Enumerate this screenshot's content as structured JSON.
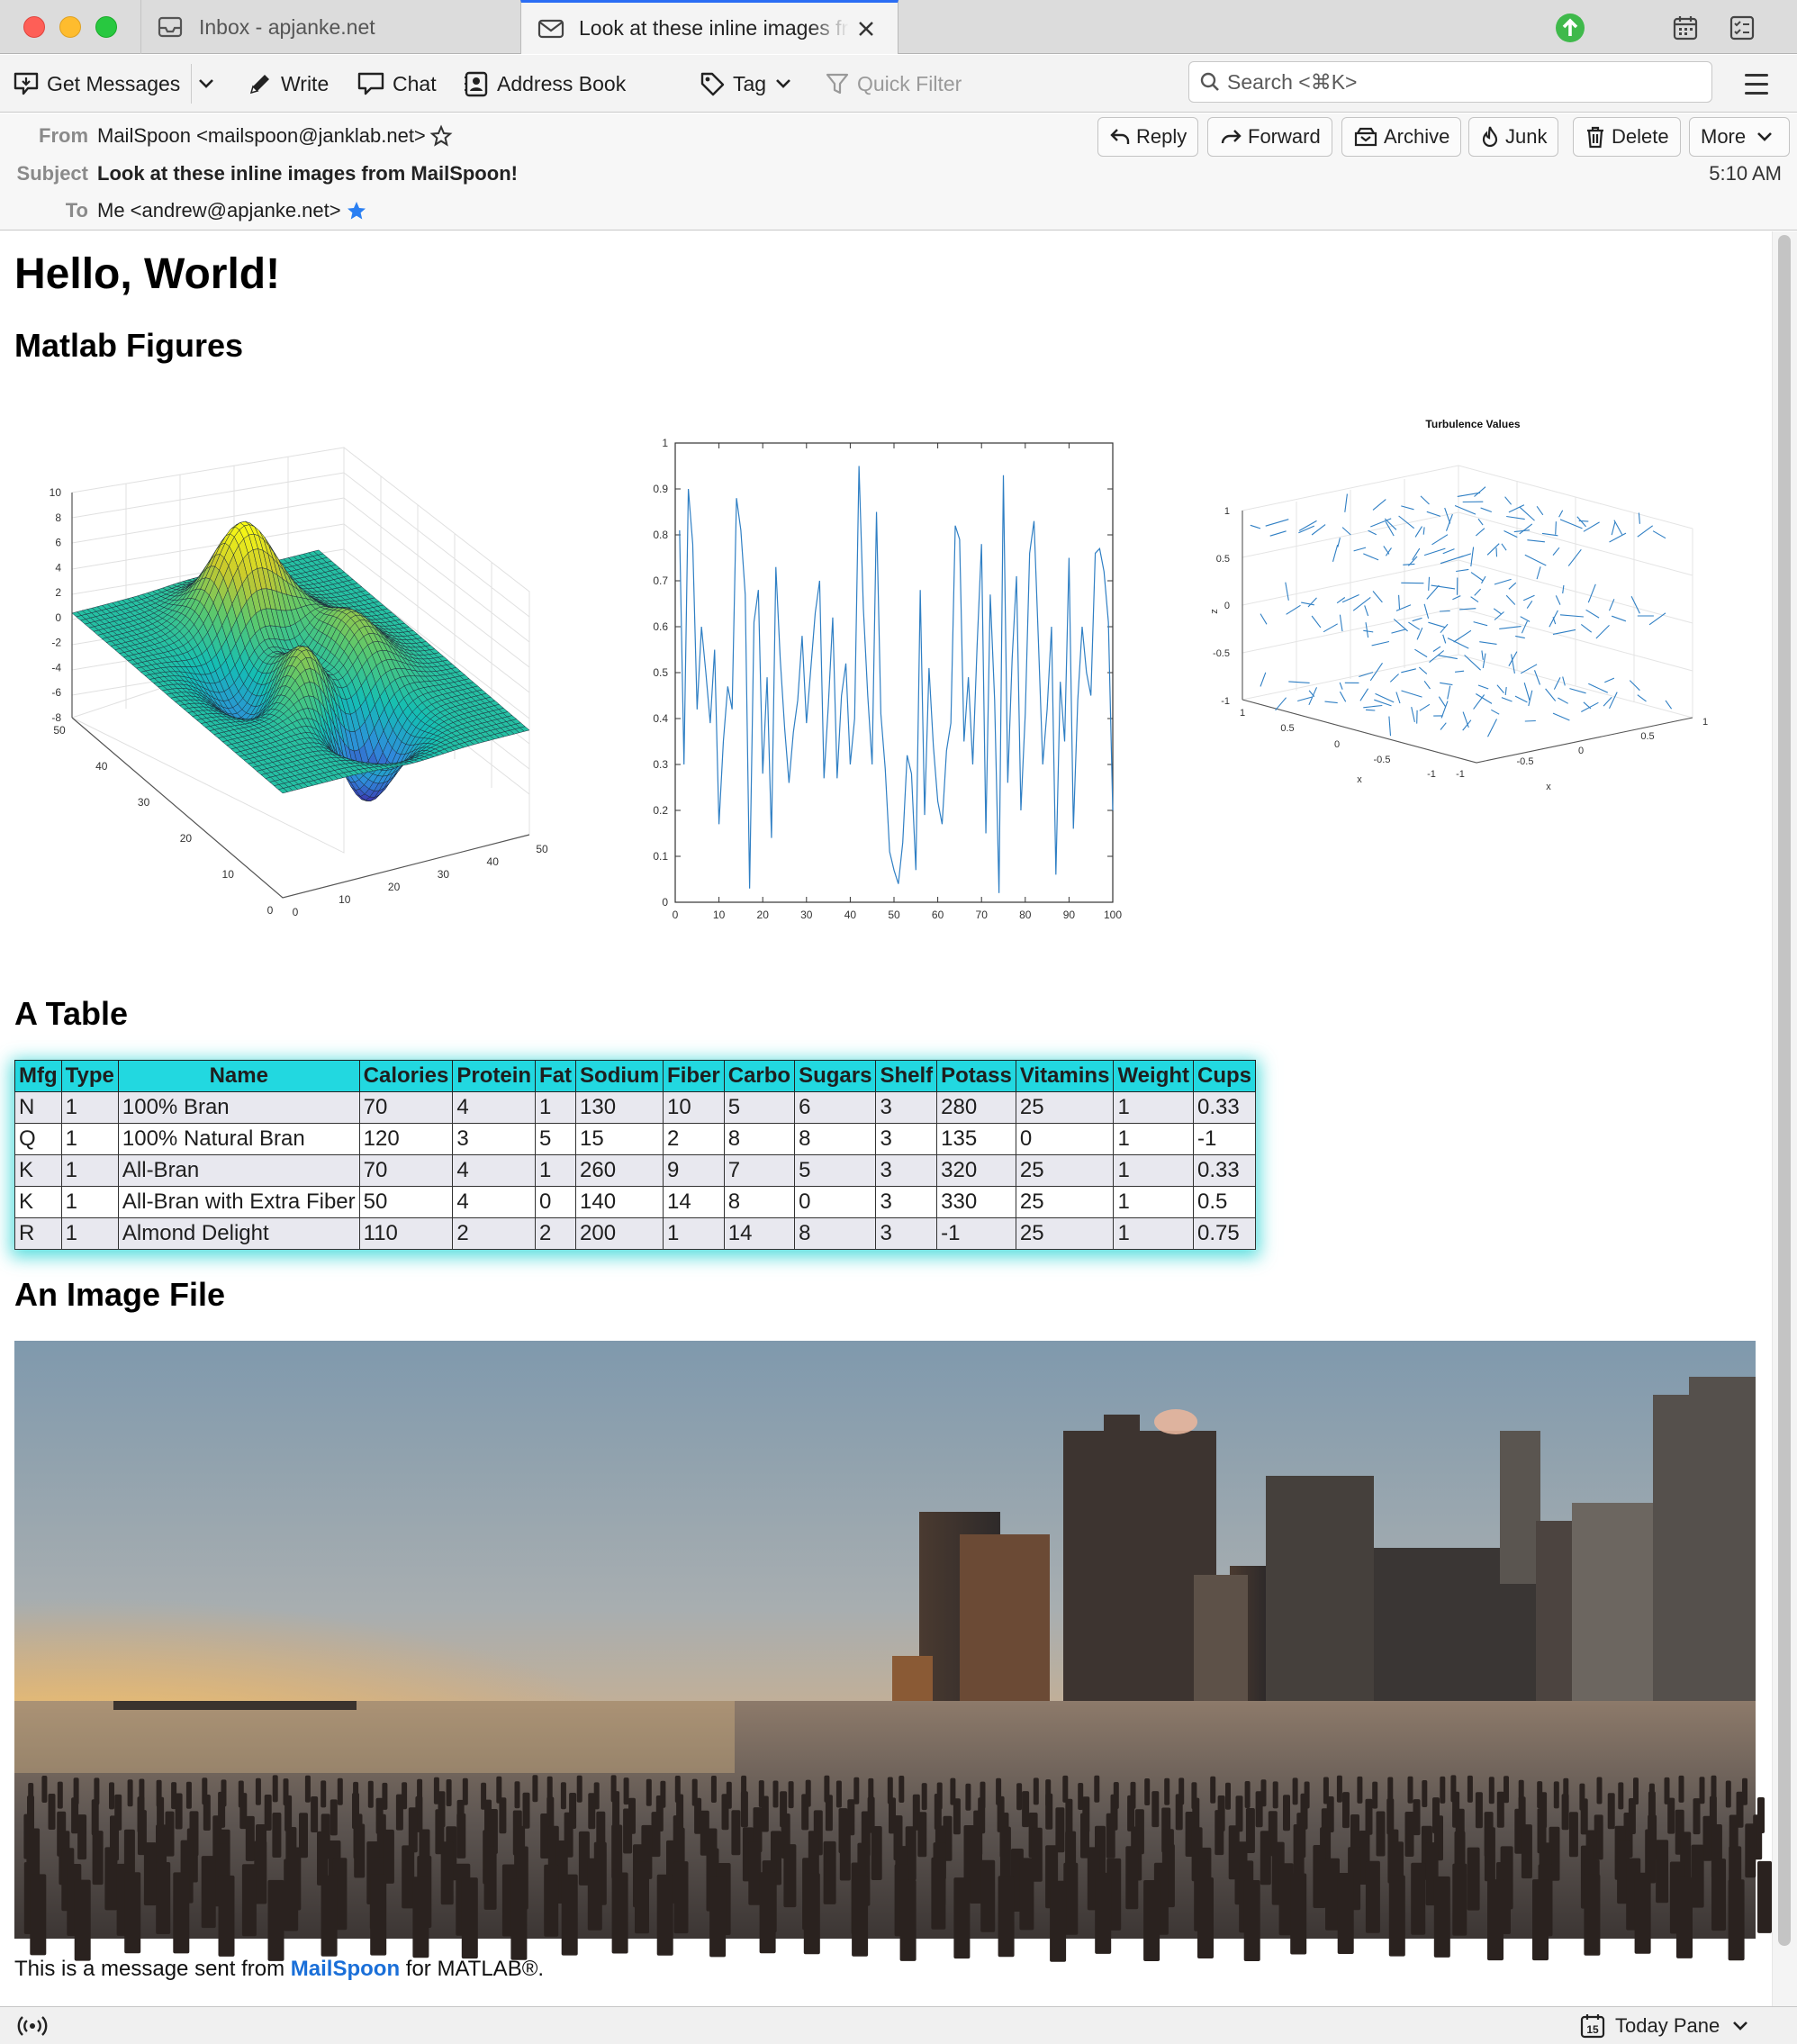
{
  "window": {
    "tabs": [
      {
        "label": "Inbox - apjanke.net",
        "icon": "inbox-icon"
      },
      {
        "label": "Look at these inline images from MailSpoon!",
        "icon": "envelope-icon"
      }
    ]
  },
  "toolbar": {
    "get_messages": "Get Messages",
    "write": "Write",
    "chat": "Chat",
    "address_book": "Address Book",
    "tag": "Tag",
    "quick_filter": "Quick Filter",
    "search_placeholder": "Search <⌘K>"
  },
  "header": {
    "from_label": "From",
    "from_value": "MailSpoon <mailspoon@janklab.net>",
    "subject_label": "Subject",
    "subject_value": "Look at these inline images from MailSpoon!",
    "to_label": "To",
    "to_value": "Me <andrew@apjanke.net>",
    "time": "5:10 AM",
    "buttons": {
      "reply": "Reply",
      "forward": "Forward",
      "archive": "Archive",
      "junk": "Junk",
      "delete": "Delete",
      "more": "More"
    }
  },
  "body": {
    "greeting": "Hello, World!",
    "figures_heading": "Matlab Figures",
    "table_heading": "A Table",
    "image_heading": "An Image File",
    "footer_prefix": "This is a message sent from ",
    "footer_link": "MailSpoon",
    "footer_suffix": " for MATLAB®."
  },
  "table": {
    "headers": [
      "Mfg",
      "Type",
      "Name",
      "Calories",
      "Protein",
      "Fat",
      "Sodium",
      "Fiber",
      "Carbo",
      "Sugars",
      "Shelf",
      "Potass",
      "Vitamins",
      "Weight",
      "Cups"
    ],
    "rows": [
      [
        "N",
        "1",
        "100% Bran",
        "70",
        "4",
        "1",
        "130",
        "10",
        "5",
        "6",
        "3",
        "280",
        "25",
        "1",
        "0.33"
      ],
      [
        "Q",
        "1",
        "100% Natural Bran",
        "120",
        "3",
        "5",
        "15",
        "2",
        "8",
        "8",
        "3",
        "135",
        "0",
        "1",
        "-1"
      ],
      [
        "K",
        "1",
        "All-Bran",
        "70",
        "4",
        "1",
        "260",
        "9",
        "7",
        "5",
        "3",
        "320",
        "25",
        "1",
        "0.33"
      ],
      [
        "K",
        "1",
        "All-Bran with Extra Fiber",
        "50",
        "4",
        "0",
        "140",
        "14",
        "8",
        "0",
        "3",
        "330",
        "25",
        "1",
        "0.5"
      ],
      [
        "R",
        "1",
        "Almond Delight",
        "110",
        "2",
        "2",
        "200",
        "1",
        "14",
        "8",
        "3",
        "-1",
        "25",
        "1",
        "0.75"
      ]
    ]
  },
  "chart_data": [
    {
      "type": "surface",
      "x_ticks": [
        "0",
        "10",
        "20",
        "30",
        "40",
        "50"
      ],
      "y_ticks": [
        "0",
        "10",
        "20",
        "30",
        "40",
        "50"
      ],
      "z_ticks": [
        "-8",
        "-6",
        "-4",
        "-2",
        "0",
        "2",
        "4",
        "6",
        "8",
        "10"
      ],
      "xlim": [
        0,
        50
      ],
      "ylim": [
        0,
        50
      ],
      "zlim": [
        -8,
        10
      ]
    },
    {
      "type": "line",
      "x_ticks": [
        "0",
        "10",
        "20",
        "30",
        "40",
        "50",
        "60",
        "70",
        "80",
        "90",
        "100"
      ],
      "y_ticks": [
        "0",
        "0.1",
        "0.2",
        "0.3",
        "0.4",
        "0.5",
        "0.6",
        "0.7",
        "0.8",
        "0.9",
        "1"
      ],
      "xlim": [
        0,
        100
      ],
      "ylim": [
        0,
        1
      ],
      "color": "#2f7fc4",
      "x": [
        1,
        2,
        3,
        4,
        5,
        6,
        7,
        8,
        9,
        10,
        11,
        12,
        13,
        14,
        15,
        16,
        17,
        18,
        19,
        20,
        21,
        22,
        23,
        24,
        25,
        26,
        27,
        28,
        29,
        30,
        31,
        32,
        33,
        34,
        35,
        36,
        37,
        38,
        39,
        40,
        41,
        42,
        43,
        44,
        45,
        46,
        47,
        48,
        49,
        50,
        51,
        52,
        53,
        54,
        55,
        56,
        57,
        58,
        59,
        60,
        61,
        62,
        63,
        64,
        65,
        66,
        67,
        68,
        69,
        70,
        71,
        72,
        73,
        74,
        75,
        76,
        77,
        78,
        79,
        80,
        81,
        82,
        83,
        84,
        85,
        86,
        87,
        88,
        89,
        90,
        91,
        92,
        93,
        94,
        95,
        96,
        97,
        98,
        99,
        100
      ],
      "y": [
        0.81,
        0.3,
        0.9,
        0.78,
        0.42,
        0.6,
        0.5,
        0.39,
        0.55,
        0.17,
        0.35,
        0.47,
        0.42,
        0.88,
        0.81,
        0.67,
        0.03,
        0.61,
        0.68,
        0.28,
        0.49,
        0.14,
        0.73,
        0.53,
        0.38,
        0.26,
        0.37,
        0.44,
        0.58,
        0.39,
        0.51,
        0.63,
        0.7,
        0.27,
        0.43,
        0.62,
        0.27,
        0.45,
        0.52,
        0.3,
        0.4,
        0.95,
        0.64,
        0.45,
        0.3,
        0.85,
        0.41,
        0.29,
        0.11,
        0.07,
        0.04,
        0.13,
        0.32,
        0.28,
        0.07,
        0.68,
        0.19,
        0.51,
        0.34,
        0.22,
        0.17,
        0.33,
        0.39,
        0.82,
        0.79,
        0.35,
        0.49,
        0.3,
        0.56,
        0.78,
        0.15,
        0.67,
        0.44,
        0.02,
        0.93,
        0.26,
        0.53,
        0.71,
        0.2,
        0.41,
        0.76,
        0.83,
        0.57,
        0.3,
        0.42,
        0.6,
        0.06,
        0.48,
        0.35,
        0.75,
        0.16,
        0.44,
        0.6,
        0.5,
        0.45,
        0.76,
        0.77,
        0.72,
        0.61,
        0.2
      ]
    },
    {
      "type": "quiver3",
      "title": "Turbulence Values",
      "zlabel": "z",
      "xlabel": "x",
      "z_ticks": [
        "-1",
        "-0.5",
        "0",
        "0.5",
        "1"
      ],
      "x_ticks_left": [
        "1",
        "0.5",
        "0",
        "-0.5",
        "-1"
      ],
      "x_ticks_right": [
        "-1",
        "-0.5",
        "0",
        "0.5",
        "1"
      ],
      "color": "#2f7fc4"
    }
  ],
  "image": {
    "alt": "City skyline at sunset over the water with old pier pilings"
  }
}
